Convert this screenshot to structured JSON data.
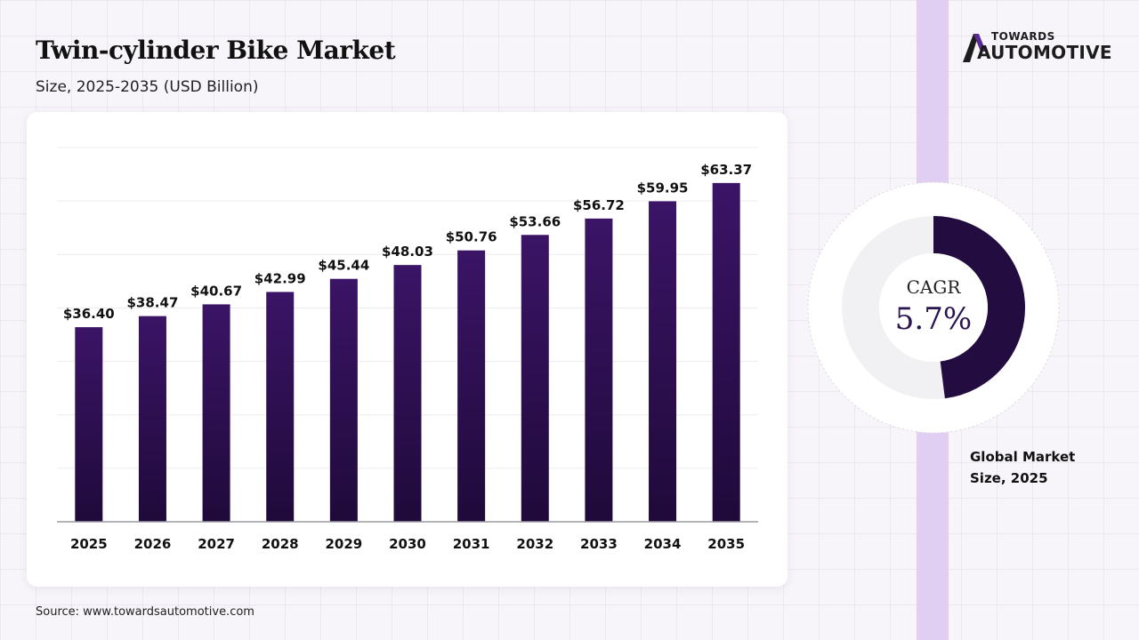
{
  "header": {
    "title": "Twin-cylinder Bike Market",
    "subtitle": "Size, 2025-2035 (USD Billion)"
  },
  "source": "Source: www.towardsautomotive.com",
  "logo": {
    "top": "TOWARDS",
    "bottom": "AUTOMOTIVE"
  },
  "chart_data": {
    "type": "bar",
    "title": "Twin-cylinder Bike Market",
    "subtitle": "Size, 2025-2035 (USD Billion)",
    "categories": [
      "2025",
      "2026",
      "2027",
      "2028",
      "2029",
      "2030",
      "2031",
      "2032",
      "2033",
      "2034",
      "2035"
    ],
    "values": [
      36.4,
      38.47,
      40.67,
      42.99,
      45.44,
      48.03,
      50.76,
      53.66,
      56.72,
      59.95,
      63.37
    ],
    "value_labels": [
      "$36.40",
      "$38.47",
      "$40.67",
      "$42.99",
      "$45.44",
      "$48.03",
      "$50.76",
      "$53.66",
      "$56.72",
      "$59.95",
      "$63.37"
    ],
    "ylim": [
      0,
      70
    ],
    "grid": true,
    "bar_color": "#3b1466"
  },
  "cagr": {
    "label": "CAGR",
    "value": "5.7%",
    "fill_fraction": 0.48,
    "colors": {
      "filled": "#230d40",
      "remainder": "#f1f1f3"
    }
  },
  "market_label": "Global Market Size, 2025"
}
